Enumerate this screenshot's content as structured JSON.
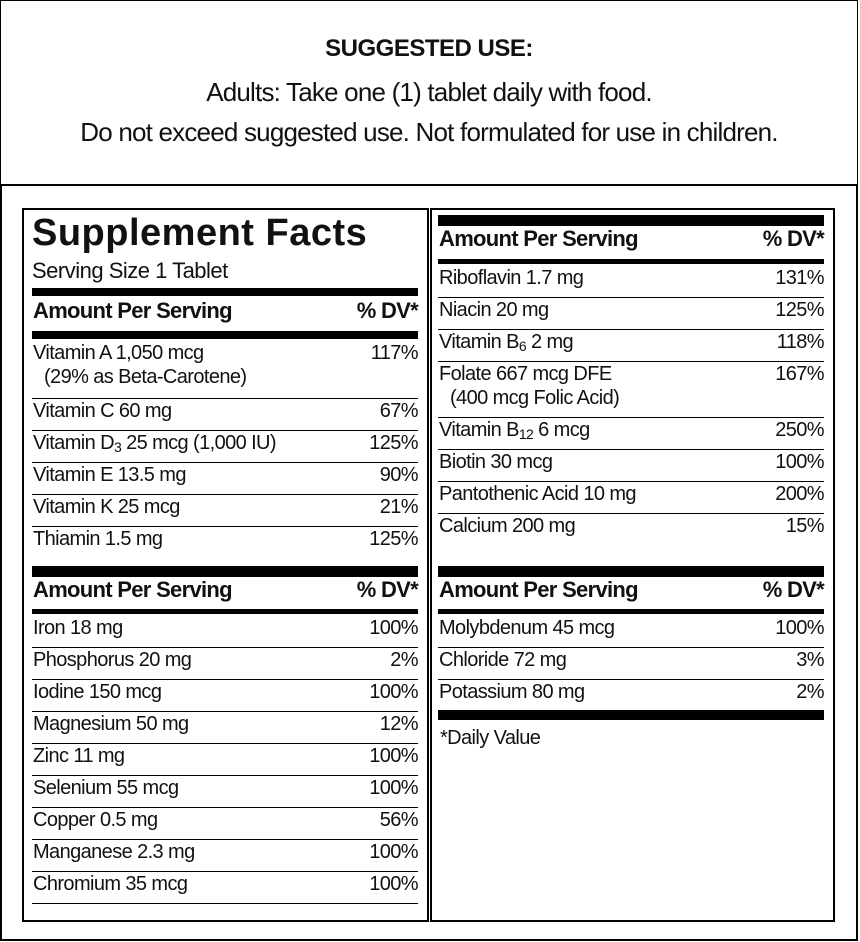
{
  "suggested_use": {
    "title": "SUGGESTED USE:",
    "line1": "Adults: Take one (1) tablet daily with food.",
    "line2": "Do not exceed suggested use. Not formulated for use in children."
  },
  "facts": {
    "title": "Supplement Facts",
    "serving_size": "Serving Size 1 Tablet",
    "header_amount": "Amount Per Serving",
    "header_dv": "% DV*",
    "footnote": "*Daily Value",
    "left_block_1": [
      {
        "name": "Vitamin A 1,050 mcg",
        "note": "(29% as Beta-Carotene)",
        "dv": "117%"
      },
      {
        "name": "Vitamin C 60 mg",
        "dv": "67%"
      },
      {
        "pre": "Vitamin D",
        "sub": "3",
        "post": " 25 mcg (1,000 IU)",
        "dv": "125%"
      },
      {
        "name": "Vitamin E 13.5 mg",
        "dv": "90%"
      },
      {
        "name": "Vitamin K 25 mcg",
        "dv": "21%"
      },
      {
        "name": "Thiamin 1.5 mg",
        "dv": "125%"
      }
    ],
    "left_block_2": [
      {
        "name": "Iron 18 mg",
        "dv": "100%"
      },
      {
        "name": "Phosphorus 20 mg",
        "dv": "2%"
      },
      {
        "name": "Iodine 150 mcg",
        "dv": "100%"
      },
      {
        "name": "Magnesium 50 mg",
        "dv": "12%"
      },
      {
        "name": "Zinc 11 mg",
        "dv": "100%"
      },
      {
        "name": "Selenium 55 mcg",
        "dv": "100%"
      },
      {
        "name": "Copper 0.5 mg",
        "dv": "56%"
      },
      {
        "name": "Manganese 2.3 mg",
        "dv": "100%"
      },
      {
        "name": "Chromium 35 mcg",
        "dv": "100%"
      }
    ],
    "right_block_1": [
      {
        "name": "Riboflavin 1.7 mg",
        "dv": "131%"
      },
      {
        "name": "Niacin 20 mg",
        "dv": "125%"
      },
      {
        "pre": "Vitamin B",
        "sub": "6",
        "post": " 2 mg",
        "dv": "118%"
      },
      {
        "name": "Folate 667 mcg DFE",
        "note": "(400 mcg Folic Acid)",
        "dv": "167%"
      },
      {
        "pre": "Vitamin B",
        "sub": "12",
        "post": " 6 mcg",
        "dv": "250%"
      },
      {
        "name": "Biotin 30 mcg",
        "dv": "100%"
      },
      {
        "name": "Pantothenic Acid 10 mg",
        "dv": "200%"
      },
      {
        "name": "Calcium 200 mg",
        "dv": "15%"
      }
    ],
    "right_block_2": [
      {
        "name": "Molybdenum 45 mcg",
        "dv": "100%"
      },
      {
        "name": "Chloride 72 mg",
        "dv": "3%"
      },
      {
        "name": "Potassium 80 mg",
        "dv": "2%"
      }
    ]
  }
}
